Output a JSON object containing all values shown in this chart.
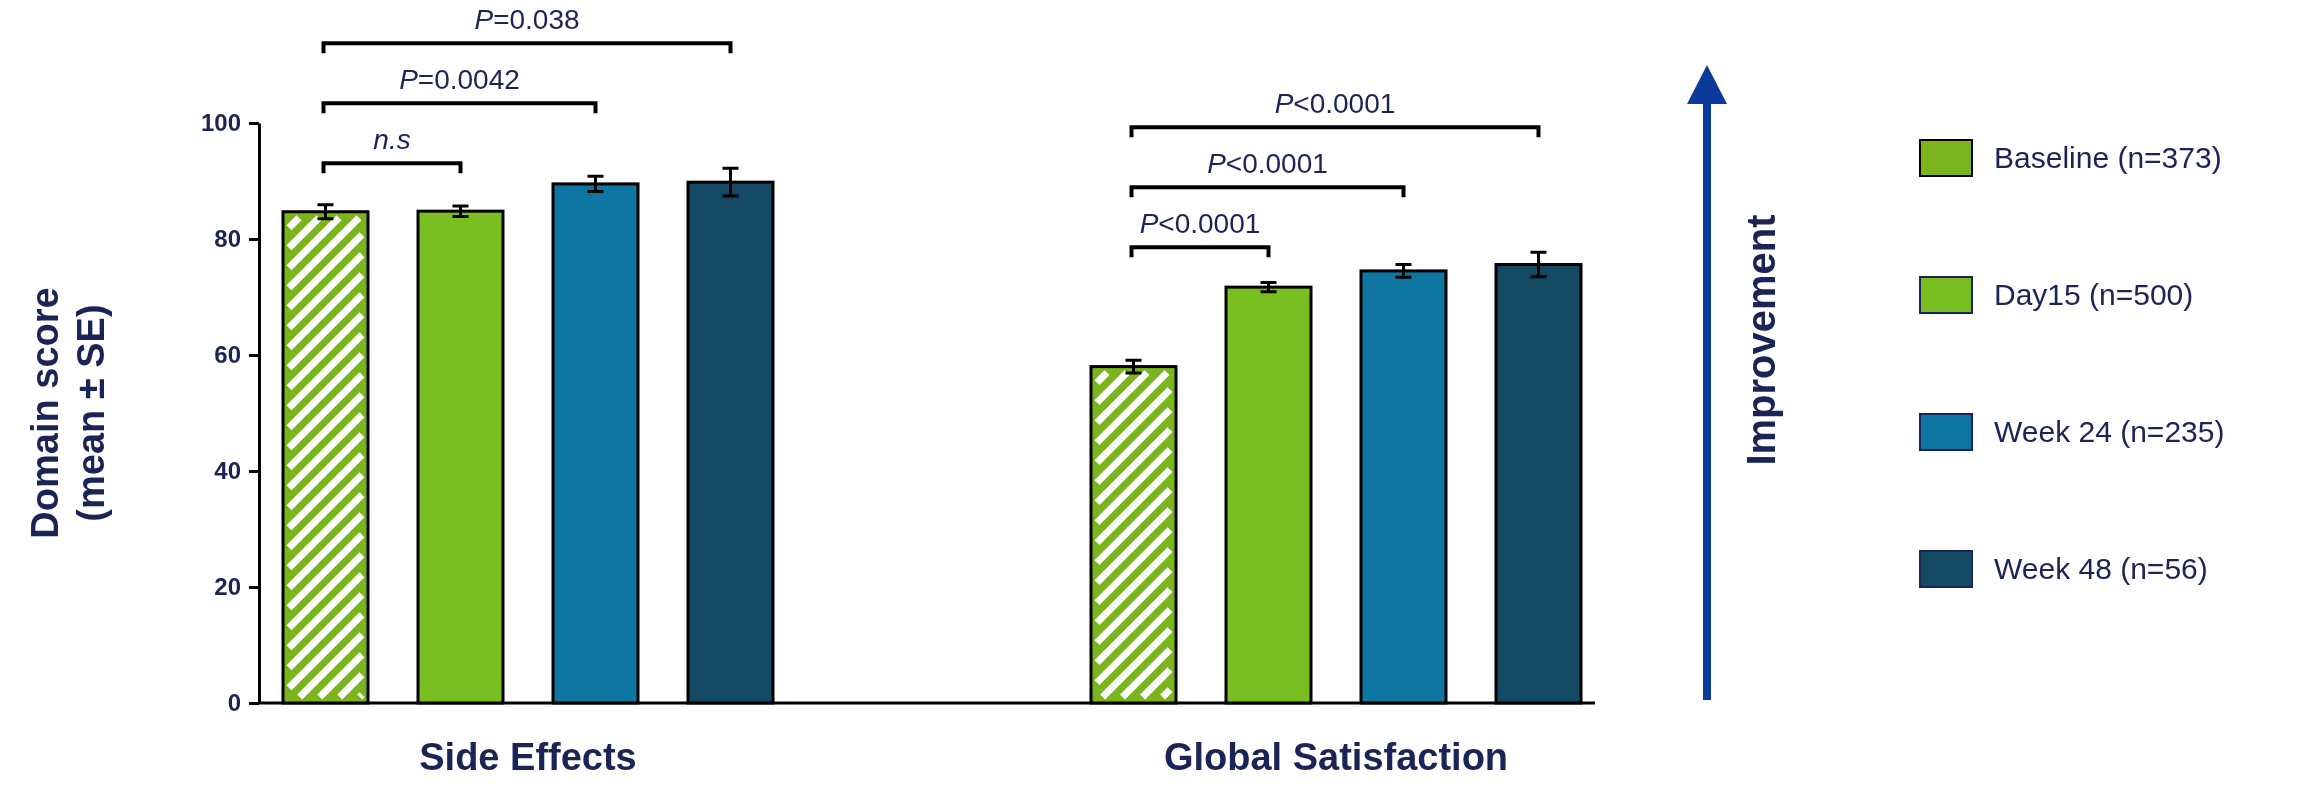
{
  "chart_data": {
    "type": "bar",
    "ylabel": "Domain score (mean ± SE)",
    "categories": [
      "Side Effects",
      "Global Satisfaction"
    ],
    "series": [
      {
        "name": "Baseline (n=373)",
        "color": "#7ab51d",
        "values": [
          84.7,
          58.0
        ],
        "errors": [
          1.2,
          1.1
        ]
      },
      {
        "name": "Day15 (n=500)",
        "color": "#7abf21",
        "values": [
          84.8,
          71.7
        ],
        "errors": [
          0.9,
          0.8
        ]
      },
      {
        "name": "Week 24 (n=235)",
        "color": "#0e76a0",
        "values": [
          89.5,
          74.5
        ],
        "errors": [
          1.3,
          1.1
        ]
      },
      {
        "name": "Week 48 (n=56)",
        "color": "#134962",
        "values": [
          89.8,
          75.6
        ],
        "errors": [
          2.4,
          2.1
        ]
      }
    ],
    "ylim": [
      0,
      100
    ],
    "yticks": [
      0,
      20,
      40,
      60,
      80,
      100
    ],
    "grid": false,
    "legend": "right",
    "annotations": [
      "n.s",
      "P=0.0042",
      "P=0.038",
      "P<0.0001",
      "P<0.0001",
      "P<0.0001",
      "Improvement"
    ]
  }
}
